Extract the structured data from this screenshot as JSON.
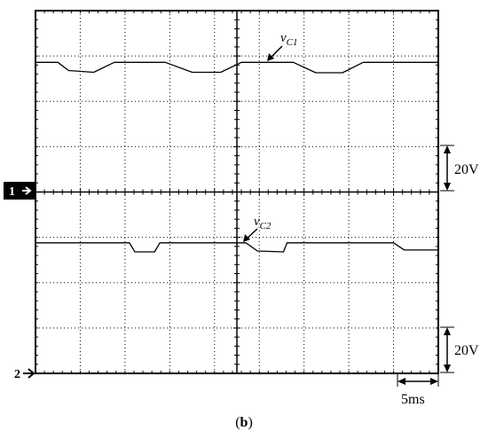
{
  "chart_data": {
    "type": "line",
    "title": "",
    "xlabel": "",
    "ylabel": "",
    "grid": true,
    "xlim": [
      0,
      45
    ],
    "x_division_ms": 5,
    "volts_per_division": 20,
    "series": [
      {
        "name": "vC1",
        "label_main": "v",
        "label_sub": "C1",
        "channel_marker": "1",
        "color": "#000000",
        "points": [
          [
            0,
            2.86
          ],
          [
            2.5,
            2.86
          ],
          [
            3.7,
            2.68
          ],
          [
            6.5,
            2.64
          ],
          [
            8.8,
            2.86
          ],
          [
            14.5,
            2.86
          ],
          [
            17.5,
            2.64
          ],
          [
            20.7,
            2.64
          ],
          [
            23,
            2.86
          ],
          [
            28.8,
            2.86
          ],
          [
            31.3,
            2.63
          ],
          [
            34.3,
            2.63
          ],
          [
            36.6,
            2.86
          ],
          [
            45,
            2.86
          ]
        ]
      },
      {
        "name": "vC2",
        "label_main": "v",
        "label_sub": "C2",
        "channel_marker": "2",
        "color": "#000000",
        "points": [
          [
            0,
            2.88
          ],
          [
            10.5,
            2.88
          ],
          [
            11.1,
            2.68
          ],
          [
            13.3,
            2.68
          ],
          [
            13.9,
            2.88
          ],
          [
            23.5,
            2.88
          ],
          [
            24.8,
            2.7
          ],
          [
            27.7,
            2.68
          ],
          [
            28.1,
            2.88
          ],
          [
            40,
            2.88
          ],
          [
            41.2,
            2.72
          ],
          [
            45,
            2.72
          ]
        ]
      }
    ],
    "annotations": {
      "volt_scale_1": "20V",
      "volt_scale_2": "20V",
      "time_scale": "5ms"
    }
  },
  "caption": {
    "open": "(",
    "letter": "b",
    "close": ")"
  }
}
